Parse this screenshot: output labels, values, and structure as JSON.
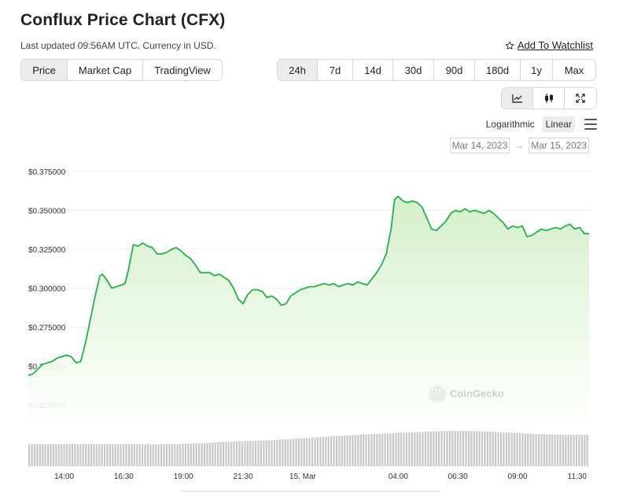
{
  "header": {
    "title": "Conflux Price Chart (CFX)",
    "updated": "Last updated 09:56AM UTC. Currency in USD.",
    "watchlist_label": "Add To Watchlist"
  },
  "view_tabs": [
    {
      "label": "Price",
      "active": true
    },
    {
      "label": "Market Cap",
      "active": false
    },
    {
      "label": "TradingView",
      "active": false
    }
  ],
  "range_tabs": [
    {
      "label": "24h",
      "active": true
    },
    {
      "label": "7d",
      "active": false
    },
    {
      "label": "14d",
      "active": false
    },
    {
      "label": "30d",
      "active": false
    },
    {
      "label": "90d",
      "active": false
    },
    {
      "label": "180d",
      "active": false
    },
    {
      "label": "1y",
      "active": false
    },
    {
      "label": "Max",
      "active": false
    }
  ],
  "chart_type_tabs": [
    {
      "icon": "line-chart-icon",
      "active": true
    },
    {
      "icon": "candlestick-icon",
      "active": false
    },
    {
      "icon": "fullscreen-icon",
      "active": false
    }
  ],
  "scale": {
    "logarithmic": "Logarithmic",
    "linear": "Linear",
    "active": "linear"
  },
  "date_range": {
    "from": "Mar 14, 2023",
    "arrow": "→",
    "to": "Mar 15, 2023"
  },
  "colors": {
    "line": "#22b14c",
    "fill_top": "#d4efc9",
    "fill_bottom": "#ffffff",
    "volume": "#c8c8c8",
    "grid": "#eeeeee"
  },
  "chart_data": {
    "type": "area",
    "watermark": "CoinGecko",
    "y_ticks": [
      {
        "value": 0.375,
        "label": "$0.375000"
      },
      {
        "value": 0.35,
        "label": "$0.350000"
      },
      {
        "value": 0.325,
        "label": "$0.325000"
      },
      {
        "value": 0.3,
        "label": "$0.300000"
      },
      {
        "value": 0.275,
        "label": "$0.275000"
      },
      {
        "value": 0.25,
        "label": "$0.250000"
      },
      {
        "value": 0.225,
        "label": "$0.225000"
      }
    ],
    "ylim": [
      0.225,
      0.375
    ],
    "xlim": [
      12.5,
      36.0
    ],
    "x_ticks": [
      {
        "t": 14.0,
        "label": "14:00"
      },
      {
        "t": 16.5,
        "label": "16:30"
      },
      {
        "t": 19.0,
        "label": "19:00"
      },
      {
        "t": 21.5,
        "label": "21:30"
      },
      {
        "t": 24.0,
        "label": "15. Mar"
      },
      {
        "t": 28.0,
        "label": "04:00"
      },
      {
        "t": 30.5,
        "label": "06:30"
      },
      {
        "t": 33.0,
        "label": "09:00"
      },
      {
        "t": 35.5,
        "label": "11:30"
      }
    ],
    "series": [
      {
        "x": [
          12.5,
          12.7,
          12.9,
          13.1,
          13.3,
          13.5,
          13.7,
          13.9,
          14.1,
          14.3,
          14.5,
          14.7,
          14.9,
          15.1,
          15.3,
          15.5,
          15.6,
          15.8,
          16.0,
          16.2,
          16.4,
          16.55,
          16.7,
          16.9,
          17.1,
          17.3,
          17.5,
          17.7,
          17.9,
          18.1,
          18.3,
          18.5,
          18.7,
          18.9,
          19.1,
          19.3,
          19.5,
          19.7,
          19.9,
          20.1,
          20.3,
          20.5,
          20.7,
          20.9,
          21.1,
          21.3,
          21.5,
          21.7,
          21.9,
          22.1,
          22.3,
          22.5,
          22.7,
          22.9,
          23.1,
          23.3,
          23.5,
          23.7,
          23.9,
          24.1,
          24.3,
          24.5,
          24.7,
          24.9,
          25.1,
          25.3,
          25.5,
          25.7,
          25.9,
          26.1,
          26.3,
          26.5,
          26.7,
          26.9,
          27.1,
          27.3,
          27.5,
          27.7,
          27.85,
          28.0,
          28.2,
          28.4,
          28.6,
          28.8,
          29.0,
          29.2,
          29.4,
          29.6,
          29.8,
          30.0,
          30.2,
          30.4,
          30.6,
          30.8,
          31.0,
          31.2,
          31.4,
          31.6,
          31.8,
          32.0,
          32.2,
          32.4,
          32.6,
          32.8,
          33.0,
          33.2,
          33.4,
          33.6,
          33.8,
          34.0,
          34.2,
          34.4,
          34.6,
          34.8,
          35.0,
          35.2,
          35.4,
          35.6,
          35.8,
          36.0
        ],
        "y": [
          0.244,
          0.245,
          0.248,
          0.251,
          0.252,
          0.253,
          0.255,
          0.256,
          0.257,
          0.256,
          0.252,
          0.253,
          0.265,
          0.28,
          0.295,
          0.308,
          0.309,
          0.305,
          0.3,
          0.301,
          0.302,
          0.303,
          0.312,
          0.328,
          0.327,
          0.329,
          0.327,
          0.326,
          0.322,
          0.322,
          0.323,
          0.325,
          0.326,
          0.324,
          0.321,
          0.319,
          0.315,
          0.31,
          0.31,
          0.31,
          0.308,
          0.309,
          0.307,
          0.305,
          0.3,
          0.293,
          0.29,
          0.296,
          0.299,
          0.299,
          0.298,
          0.294,
          0.295,
          0.293,
          0.289,
          0.29,
          0.295,
          0.297,
          0.299,
          0.3,
          0.301,
          0.301,
          0.302,
          0.303,
          0.302,
          0.303,
          0.301,
          0.302,
          0.303,
          0.302,
          0.304,
          0.303,
          0.302,
          0.306,
          0.31,
          0.315,
          0.322,
          0.338,
          0.357,
          0.359,
          0.356,
          0.355,
          0.356,
          0.355,
          0.352,
          0.345,
          0.338,
          0.337,
          0.34,
          0.343,
          0.348,
          0.35,
          0.349,
          0.351,
          0.349,
          0.35,
          0.349,
          0.348,
          0.35,
          0.348,
          0.345,
          0.342,
          0.338,
          0.34,
          0.339,
          0.34,
          0.333,
          0.334,
          0.336,
          0.338,
          0.337,
          0.338,
          0.339,
          0.338,
          0.34,
          0.341,
          0.338,
          0.339,
          0.335,
          0.335
        ]
      }
    ],
    "volume": [
      0.93,
      0.94,
      0.94,
      0.94,
      0.94,
      0.94,
      0.93,
      0.94,
      0.94,
      0.93,
      0.94,
      0.94,
      0.94,
      0.93,
      0.94,
      0.94,
      0.94,
      0.94,
      0.94,
      0.93,
      0.94,
      0.94,
      0.94,
      0.94,
      0.94,
      0.93,
      0.94,
      0.94,
      0.95,
      0.95,
      0.94,
      0.93,
      0.94,
      0.94,
      0.94,
      0.94,
      0.95,
      0.94,
      0.94,
      0.95,
      0.94,
      0.94,
      0.93,
      0.93,
      0.94,
      0.94,
      0.93,
      0.93,
      0.93,
      0.94,
      0.94,
      0.95,
      0.95,
      0.94,
      0.94,
      0.94,
      0.95,
      0.95,
      0.96,
      0.96,
      0.96,
      0.97,
      0.97,
      0.98,
      0.98,
      0.99,
      0.99,
      1.0,
      1.0,
      1.01,
      1.02,
      1.03,
      1.03,
      1.04,
      1.04,
      1.04,
      1.05,
      1.05,
      1.06,
      1.05,
      1.06,
      1.06,
      1.07,
      1.07,
      1.08,
      1.08,
      1.09,
      1.09,
      1.1,
      1.1,
      1.11,
      1.11,
      1.12,
      1.13,
      1.13,
      1.14,
      1.14,
      1.15,
      1.16,
      1.17,
      1.18,
      1.18,
      1.19,
      1.2,
      1.21,
      1.22,
      1.23,
      1.23,
      1.24,
      1.25,
      1.25,
      1.26,
      1.27,
      1.28,
      1.28,
      1.29,
      1.29,
      1.3,
      1.31,
      1.31,
      1.32,
      1.33,
      1.33,
      1.34,
      1.35,
      1.35,
      1.36,
      1.36,
      1.37,
      1.37,
      1.38,
      1.38,
      1.39,
      1.4,
      1.4,
      1.41,
      1.41,
      1.42,
      1.42,
      1.43,
      1.43,
      1.44,
      1.44,
      1.45,
      1.45,
      1.46,
      1.46,
      1.47,
      1.47,
      1.47,
      1.48,
      1.48,
      1.48,
      1.49,
      1.49,
      1.49,
      1.5,
      1.5,
      1.5,
      1.5,
      1.5,
      1.5,
      1.5,
      1.5,
      1.49,
      1.49,
      1.49,
      1.48,
      1.48,
      1.47,
      1.47,
      1.46,
      1.46,
      1.45,
      1.45,
      1.44,
      1.44,
      1.43,
      1.43,
      1.42,
      1.41,
      1.41,
      1.4,
      1.4,
      1.39,
      1.39,
      1.38,
      1.38,
      1.37,
      1.37,
      1.36,
      1.36,
      1.35,
      1.35,
      1.35,
      1.34,
      1.34,
      1.34,
      1.33,
      1.33,
      1.33,
      1.33,
      1.33,
      1.33,
      1.33,
      1.33,
      1.33,
      1.33
    ]
  }
}
